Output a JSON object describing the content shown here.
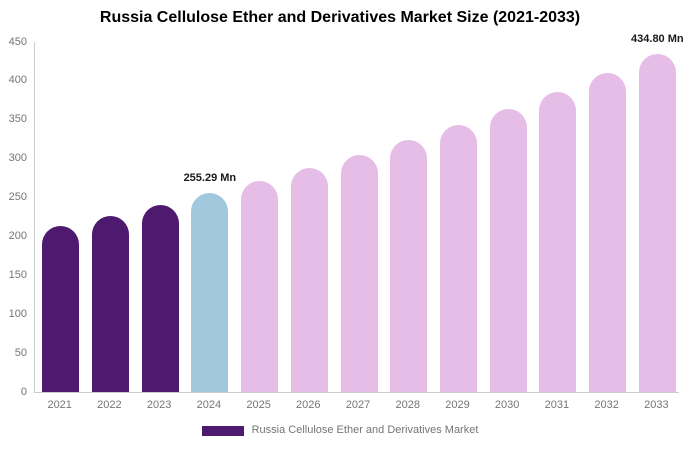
{
  "title": "Russia Cellulose Ether and Derivatives Market Size (2021-2033)",
  "legend": {
    "label": "Russia Cellulose Ether and Derivatives Market"
  },
  "colors": {
    "bars": {
      "historical": "#4D1A70",
      "current": "#A2C8DE",
      "forecast": "#E5BDE7"
    },
    "legend_swatch": "#4D1A70",
    "axis_line": "#CCCCCC",
    "tick_label": "#757575",
    "annotation_text": "#1A1A1A",
    "title_text": "#000000",
    "background": "#FFFFFF"
  },
  "chart_data": {
    "type": "bar",
    "title": "Russia Cellulose Ether and Derivatives Market Size (2021-2033)",
    "unit": "Mn",
    "categories": [
      "2021",
      "2022",
      "2023",
      "2024",
      "2025",
      "2026",
      "2027",
      "2028",
      "2029",
      "2030",
      "2031",
      "2032",
      "2033"
    ],
    "values": [
      213.5,
      226.9,
      240.7,
      255.29,
      270.9,
      287.4,
      304.9,
      323.4,
      343.1,
      364.0,
      386.2,
      409.7,
      434.8
    ],
    "bar_roles": [
      "historical",
      "historical",
      "historical",
      "current",
      "forecast",
      "forecast",
      "forecast",
      "forecast",
      "forecast",
      "forecast",
      "forecast",
      "forecast",
      "forecast"
    ],
    "annotations": [
      {
        "category": "2024",
        "text": "255.29 Mn"
      },
      {
        "category": "2033",
        "text": "434.80 Mn"
      }
    ],
    "xlabel": "",
    "ylabel": "",
    "ylim": [
      0,
      450
    ],
    "yticks": [
      0,
      50,
      100,
      150,
      200,
      250,
      300,
      350,
      400,
      450
    ],
    "grid": false,
    "legend_position": "bottom",
    "legend_entries": [
      "Russia Cellulose Ether and Derivatives Market"
    ]
  }
}
